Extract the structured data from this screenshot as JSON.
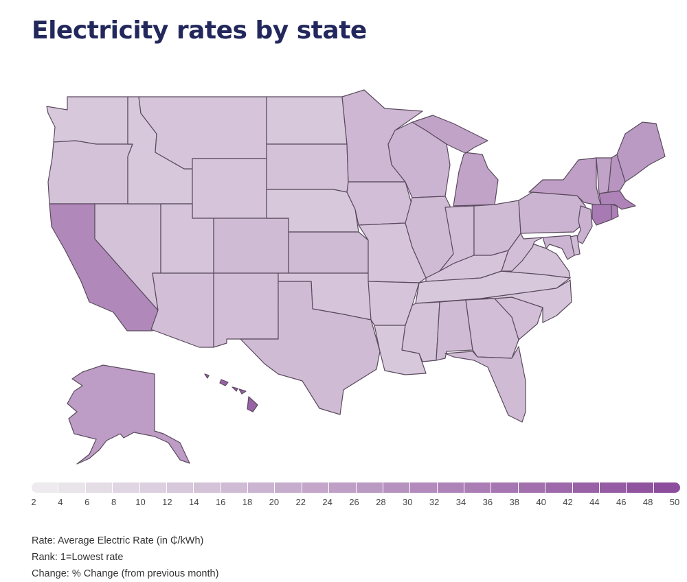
{
  "title": "Electricity rates by state",
  "legend": {
    "ticks": [
      "2",
      "4",
      "6",
      "8",
      "10",
      "12",
      "14",
      "16",
      "18",
      "20",
      "22",
      "24",
      "26",
      "28",
      "30",
      "32",
      "34",
      "36",
      "38",
      "40",
      "42",
      "44",
      "46",
      "48",
      "50"
    ],
    "color_low": "#efeeef",
    "color_high": "#8a4a9a"
  },
  "notes": {
    "rate": "Rate: Average Electric Rate (in ₵/kWh)",
    "rank": "Rank: 1=Lowest rate",
    "change": "Change: % Change (from previous month)"
  },
  "states": {
    "WA": 13,
    "OR": 15,
    "CA": 32,
    "NV": 15,
    "ID": 13,
    "MT": 14,
    "WY": 14,
    "UT": 14,
    "AZ": 16,
    "CO": 17,
    "NM": 16,
    "ND": 13,
    "SD": 15,
    "NE": 13,
    "KS": 17,
    "OK": 14,
    "TX": 17,
    "MN": 18,
    "IA": 16,
    "MO": 14,
    "AR": 14,
    "LA": 13,
    "WI": 19,
    "IL": 17,
    "MI": 24,
    "IN": 16,
    "OH": 17,
    "KY": 14,
    "TN": 13,
    "MS": 15,
    "AL": 17,
    "GA": 16,
    "FL": 17,
    "SC": 16,
    "NC": 14,
    "VA": 15,
    "WV": 16,
    "PA": 19,
    "NY": 25,
    "VT": 24,
    "NH": 28,
    "ME": 27,
    "MA": 33,
    "RI": 34,
    "CT": 36,
    "NJ": 20,
    "DE": 17,
    "MD": 19,
    "AK": 26,
    "HI": 43
  }
}
